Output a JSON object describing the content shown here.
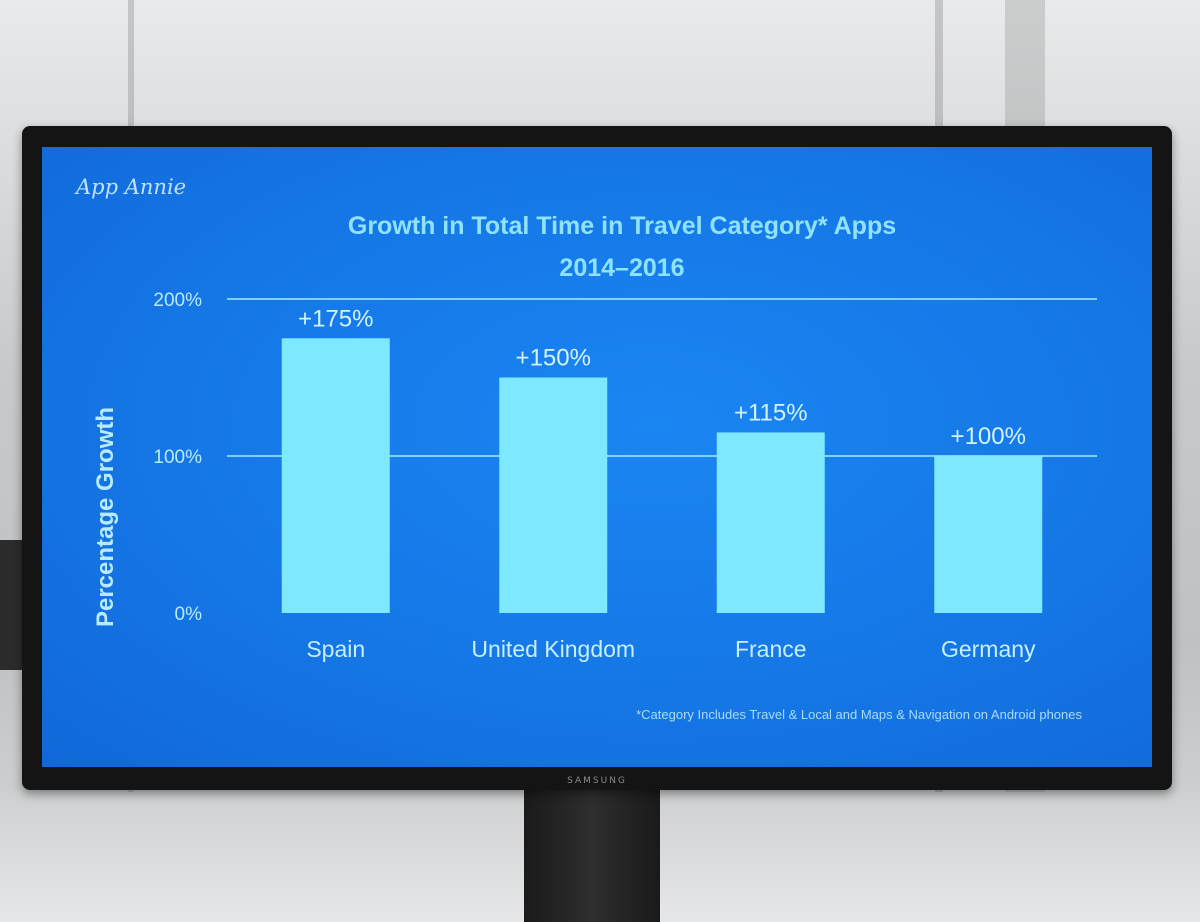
{
  "slide": {
    "logo": "App Annie",
    "footnote": "*Category Includes Travel & Local and Maps & Navigation on Android phones",
    "monitor_brand": "SAMSUNG"
  },
  "colors": {
    "background": "#1577e6",
    "bar": "#7ee8ff",
    "title": "#8fe3ff",
    "gridline": "#a8ecff"
  },
  "chart_data": {
    "type": "bar",
    "title": "Growth in Total Time in Travel Category* Apps",
    "subtitle": "2014–2016",
    "xlabel": "",
    "ylabel": "Percentage Growth",
    "categories": [
      "Spain",
      "United Kingdom",
      "France",
      "Germany"
    ],
    "values": [
      175,
      150,
      115,
      100
    ],
    "data_labels": [
      "+175%",
      "+150%",
      "+115%",
      "+100%"
    ],
    "ylim": [
      0,
      200
    ],
    "yticks": [
      0,
      100,
      200
    ],
    "ytick_labels": [
      "0%",
      "100%",
      "200%"
    ],
    "gridlines": [
      100,
      200
    ],
    "legend": "none"
  }
}
